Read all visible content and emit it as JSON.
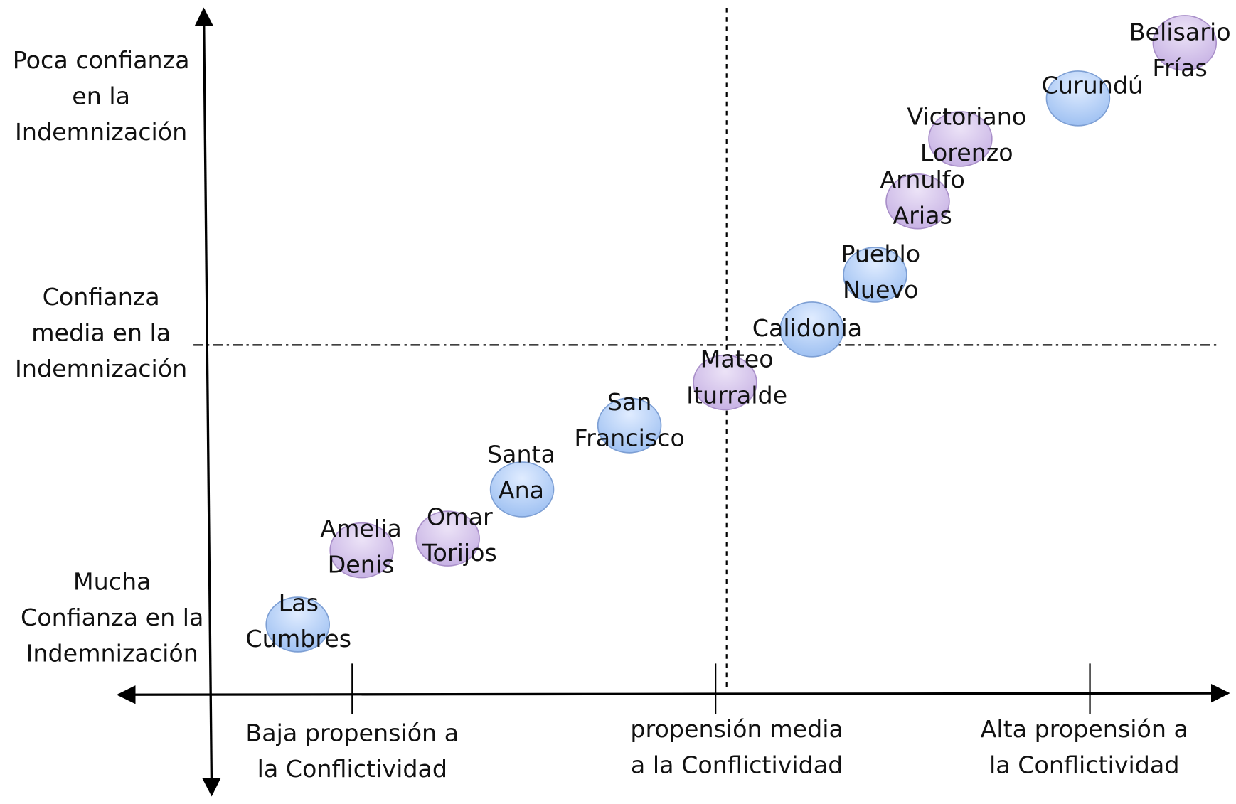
{
  "y_labels": [
    [
      "Poca confianza",
      "en la",
      "Indemnización"
    ],
    [
      "Confianza",
      "media en la",
      "Indemnización"
    ],
    [
      "Mucha",
      "Confianza en la",
      "Indemnización"
    ]
  ],
  "x_labels": [
    [
      "Baja propensión a",
      "la Conflictividad"
    ],
    [
      "propensión media",
      "a la Conflictividad"
    ],
    [
      "Alta propensión a",
      "la Conflictividad"
    ]
  ],
  "nodes": [
    {
      "label": [
        "Las",
        "Cumbres"
      ]
    },
    {
      "label": [
        "Amelia",
        "Denis"
      ]
    },
    {
      "label": [
        "Omar",
        "Torijos"
      ]
    },
    {
      "label": [
        "Santa",
        "Ana"
      ]
    },
    {
      "label": [
        "San",
        "Francisco"
      ]
    },
    {
      "label": [
        "Mateo",
        "Iturralde"
      ]
    },
    {
      "label": [
        "Calidonia"
      ]
    },
    {
      "label": [
        "Pueblo",
        "Nuevo"
      ]
    },
    {
      "label": [
        "Arnulfo",
        "Arias"
      ]
    },
    {
      "label": [
        "Victoriano",
        "Lorenzo"
      ]
    },
    {
      "label": [
        "Curundú"
      ]
    },
    {
      "label": [
        "Belisario",
        "Frías"
      ]
    }
  ]
}
